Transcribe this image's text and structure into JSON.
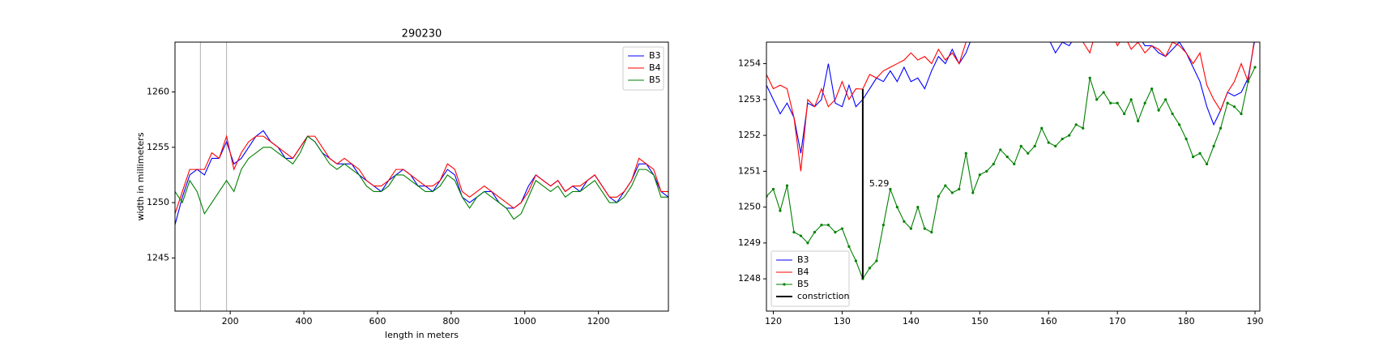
{
  "chart_data": [
    {
      "type": "line",
      "title": "290230",
      "xlabel": "length in meters",
      "ylabel": "width in millimeters",
      "x": [
        50,
        70,
        90,
        110,
        130,
        150,
        170,
        190,
        210,
        230,
        250,
        270,
        290,
        310,
        330,
        350,
        370,
        390,
        410,
        430,
        450,
        470,
        490,
        510,
        530,
        550,
        570,
        590,
        610,
        630,
        650,
        670,
        690,
        710,
        730,
        750,
        770,
        790,
        810,
        830,
        850,
        870,
        890,
        910,
        930,
        950,
        970,
        990,
        1010,
        1030,
        1050,
        1070,
        1090,
        1110,
        1130,
        1150,
        1170,
        1190,
        1210,
        1230,
        1250,
        1270,
        1290,
        1310,
        1330,
        1350,
        1370,
        1390
      ],
      "series": [
        {
          "name": "B3",
          "color": "#0000ff",
          "values": [
            1248,
            1250.5,
            1252.5,
            1253,
            1252.5,
            1254,
            1254,
            1255.5,
            1253.5,
            1254,
            1255,
            1256,
            1256.5,
            1255.5,
            1255,
            1254,
            1254,
            1255,
            1256,
            1255.5,
            1254.5,
            1254,
            1253.5,
            1253.5,
            1253.5,
            1252.5,
            1252,
            1251.5,
            1251,
            1252,
            1252.5,
            1253,
            1252.5,
            1251.5,
            1251.5,
            1251,
            1252,
            1253,
            1252.5,
            1250.5,
            1250,
            1250.5,
            1251,
            1251,
            1250,
            1249.5,
            1249.5,
            1250,
            1251.5,
            1252.5,
            1252,
            1251.5,
            1252,
            1251,
            1251.5,
            1251,
            1252,
            1252.5,
            1251.5,
            1250.5,
            1250,
            1251,
            1252,
            1253.5,
            1253.5,
            1252.5,
            1251,
            1250.5
          ]
        },
        {
          "name": "B4",
          "color": "#ff0000",
          "values": [
            1249,
            1251,
            1253,
            1253,
            1253,
            1254.5,
            1254,
            1256,
            1253,
            1254.5,
            1255.5,
            1256,
            1256,
            1255.5,
            1255,
            1254.5,
            1254,
            1255,
            1256,
            1256,
            1255,
            1254,
            1253.5,
            1254,
            1253.5,
            1253,
            1252,
            1251.5,
            1251.5,
            1252,
            1253,
            1253,
            1252.5,
            1252,
            1251.5,
            1251.5,
            1252,
            1253.5,
            1253,
            1251,
            1250.5,
            1251,
            1251.5,
            1251,
            1250.5,
            1250,
            1249.5,
            1250,
            1251,
            1252.5,
            1252,
            1251.5,
            1252,
            1251,
            1251.5,
            1251.5,
            1252,
            1252.5,
            1251.5,
            1250.5,
            1250.5,
            1251,
            1252,
            1254,
            1253.5,
            1253,
            1251,
            1251
          ]
        },
        {
          "name": "B5",
          "color": "#008000",
          "values": [
            1251,
            1250,
            1252,
            1251,
            1249,
            1250,
            1251,
            1252,
            1251,
            1253,
            1254,
            1254.5,
            1255,
            1255,
            1254.5,
            1254,
            1253.5,
            1254.5,
            1256,
            1255.5,
            1254.5,
            1253.5,
            1253,
            1253.5,
            1253,
            1252.5,
            1251.5,
            1251,
            1251,
            1251.5,
            1252.5,
            1252.5,
            1252,
            1251.5,
            1251,
            1251,
            1251.5,
            1252.5,
            1252,
            1250.5,
            1249.5,
            1250.5,
            1251,
            1250.5,
            1250,
            1249.5,
            1248.5,
            1249,
            1250.5,
            1252,
            1251.5,
            1251,
            1251.5,
            1250.5,
            1251,
            1251,
            1251.5,
            1252,
            1251,
            1250,
            1250,
            1250.5,
            1251.5,
            1253,
            1253,
            1252.5,
            1250.5,
            1250.5
          ]
        }
      ],
      "vlines": [
        119,
        190
      ],
      "vline_color": "#b0b0b0",
      "xlim": [
        50,
        1390
      ],
      "ylim": [
        1240.2,
        1264.5
      ],
      "xticks": [
        200,
        400,
        600,
        800,
        1000,
        1200
      ],
      "yticks": [
        1245,
        1250,
        1255,
        1260
      ],
      "legend": "upper right"
    },
    {
      "type": "line",
      "x": [
        119,
        120,
        121,
        122,
        123,
        124,
        125,
        126,
        127,
        128,
        129,
        130,
        131,
        132,
        133,
        134,
        135,
        136,
        137,
        138,
        139,
        140,
        141,
        142,
        143,
        144,
        145,
        146,
        147,
        148,
        149,
        150,
        151,
        152,
        153,
        154,
        155,
        156,
        157,
        158,
        159,
        160,
        161,
        162,
        163,
        164,
        165,
        166,
        167,
        168,
        169,
        170,
        171,
        172,
        173,
        174,
        175,
        176,
        177,
        178,
        179,
        180,
        181,
        182,
        183,
        184,
        185,
        186,
        187,
        188,
        189,
        190
      ],
      "series": [
        {
          "name": "B3",
          "color": "#0000ff",
          "values": [
            1253.4,
            1253.0,
            1252.6,
            1252.9,
            1252.5,
            1251.5,
            1252.9,
            1252.8,
            1253.0,
            1254.0,
            1252.9,
            1252.8,
            1253.4,
            1252.8,
            1253.0,
            1253.3,
            1253.6,
            1253.5,
            1253.8,
            1253.5,
            1253.9,
            1253.5,
            1253.6,
            1253.3,
            1253.8,
            1254.2,
            1254.0,
            1254.4,
            1254.0,
            1254.3,
            1254.8,
            1255.2,
            1255.0,
            1255.3,
            1255.1,
            1255.4,
            1255.2,
            1255.0,
            1255.3,
            1255.1,
            1255.0,
            1254.7,
            1254.3,
            1254.6,
            1254.5,
            1254.8,
            1254.8,
            1255.0,
            1254.9,
            1255.1,
            1254.9,
            1254.7,
            1254.9,
            1254.6,
            1254.8,
            1254.5,
            1254.5,
            1254.3,
            1254.2,
            1254.4,
            1254.6,
            1254.3,
            1253.9,
            1253.5,
            1252.8,
            1252.3,
            1252.7,
            1253.2,
            1253.1,
            1253.2,
            1253.6,
            1254.7
          ]
        },
        {
          "name": "B4",
          "color": "#ff0000",
          "values": [
            1253.7,
            1253.3,
            1253.4,
            1253.3,
            1252.5,
            1251.0,
            1253.0,
            1252.8,
            1253.3,
            1252.8,
            1253.0,
            1253.5,
            1253.0,
            1253.3,
            1253.29,
            1253.7,
            1253.6,
            1253.8,
            1253.9,
            1254.0,
            1254.1,
            1254.3,
            1254.1,
            1254.2,
            1254.0,
            1254.4,
            1254.1,
            1254.3,
            1254.0,
            1254.6,
            1254.8,
            1255.0,
            1255.2,
            1255.1,
            1255.3,
            1255.0,
            1255.2,
            1255.4,
            1255.1,
            1255.3,
            1255.0,
            1254.9,
            1255.1,
            1254.8,
            1255.0,
            1254.9,
            1254.6,
            1254.3,
            1255.0,
            1254.8,
            1255.0,
            1254.5,
            1254.8,
            1254.4,
            1254.6,
            1254.3,
            1254.5,
            1254.4,
            1254.2,
            1254.6,
            1254.5,
            1254.3,
            1254.0,
            1254.3,
            1253.4,
            1253.0,
            1252.7,
            1253.2,
            1253.5,
            1254.0,
            1253.5,
            1254.8
          ]
        },
        {
          "name": "B5",
          "color": "#008000",
          "marker": "dot",
          "values": [
            1250.3,
            1250.5,
            1249.9,
            1250.6,
            1249.3,
            1249.2,
            1249.0,
            1249.3,
            1249.5,
            1249.5,
            1249.3,
            1249.4,
            1248.9,
            1248.5,
            1248.0,
            1248.3,
            1248.5,
            1249.5,
            1250.5,
            1250.0,
            1249.6,
            1249.4,
            1250.0,
            1249.4,
            1249.3,
            1250.3,
            1250.6,
            1250.4,
            1250.5,
            1251.5,
            1250.4,
            1250.9,
            1251.0,
            1251.2,
            1251.6,
            1251.4,
            1251.2,
            1251.7,
            1251.5,
            1251.7,
            1252.2,
            1251.8,
            1251.7,
            1251.9,
            1252.0,
            1252.3,
            1252.2,
            1253.6,
            1253.0,
            1253.2,
            1252.9,
            1252.9,
            1252.6,
            1253.0,
            1252.4,
            1252.9,
            1253.3,
            1252.7,
            1253.0,
            1252.6,
            1252.3,
            1251.9,
            1251.4,
            1251.5,
            1251.2,
            1251.7,
            1252.2,
            1252.9,
            1252.8,
            1252.6,
            1253.5,
            1253.9
          ]
        },
        {
          "name": "constriction",
          "color": "#000000",
          "width": 2,
          "x": [
            133,
            133
          ],
          "values": [
            1253.29,
            1248.0
          ]
        }
      ],
      "annotation": "5.29",
      "xlim": [
        119,
        190.7
      ],
      "ylim": [
        1247.1,
        1254.6
      ],
      "xticks": [
        120,
        130,
        140,
        150,
        160,
        170,
        180,
        190
      ],
      "yticks": [
        1248,
        1249,
        1250,
        1251,
        1252,
        1253,
        1254
      ],
      "legend": "lower left"
    }
  ]
}
